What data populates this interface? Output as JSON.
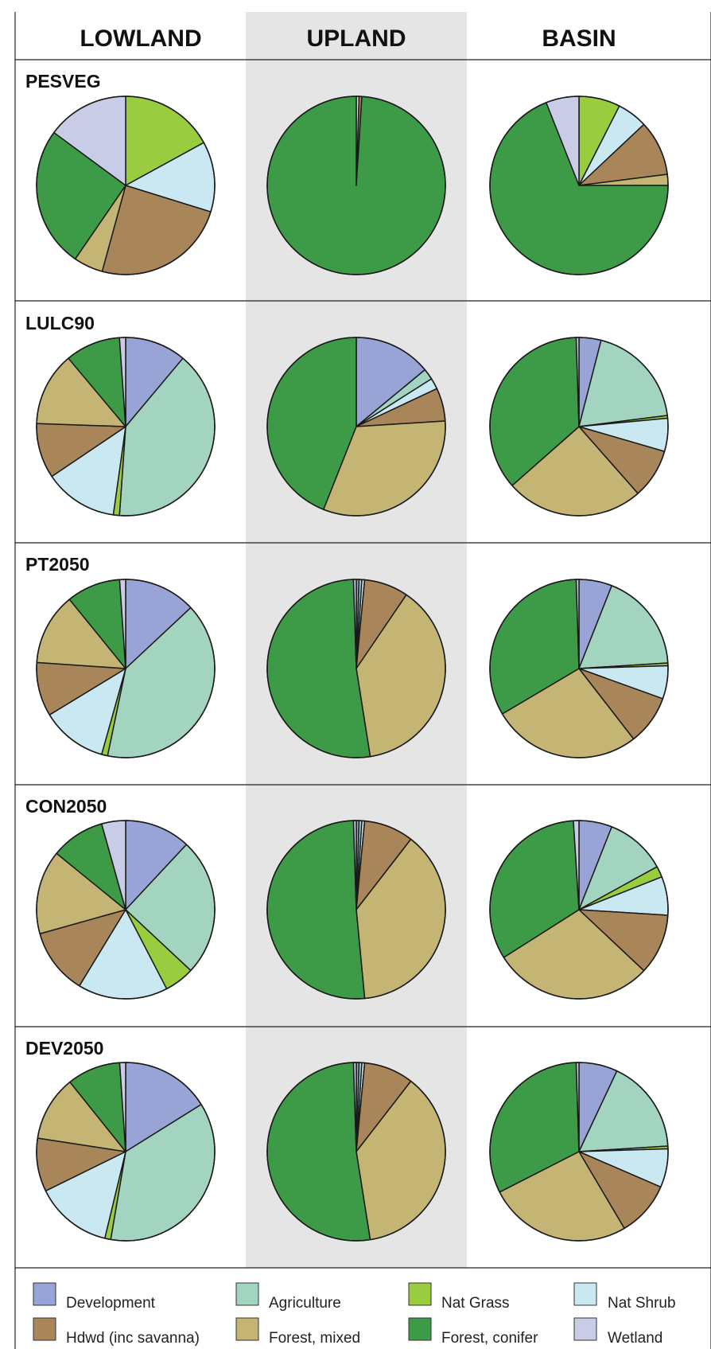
{
  "columns": [
    "LOWLAND",
    "UPLAND",
    "BASIN"
  ],
  "categories": [
    "Development",
    "Agriculture",
    "Nat Grass",
    "Nat Shrub",
    "Hdwd (inc savanna)",
    "Forest, mixed",
    "Forest, conifer",
    "Wetland"
  ],
  "colors": {
    "Development": "#98a4d6",
    "Agriculture": "#a3d4bf",
    "Nat Grass": "#99cc3e",
    "Nat Shrub": "#c9e8f1",
    "Hdwd (inc savanna)": "#a88659",
    "Forest, mixed": "#c4b574",
    "Forest, conifer": "#3d9a47",
    "Wetland": "#c9cce6"
  },
  "chart_data": {
    "type": "pie",
    "units": "percent of area",
    "rows": [
      "PESVEG",
      "LULC90",
      "PT2050",
      "CON2050",
      "DEV2050"
    ],
    "categories": [
      "Development",
      "Agriculture",
      "Nat Grass",
      "Nat Shrub",
      "Hdwd (inc savanna)",
      "Forest, mixed",
      "Forest, conifer",
      "Wetland"
    ],
    "pies": [
      {
        "row": "PESVEG",
        "column": "LOWLAND",
        "values": [
          0,
          0,
          16,
          12,
          23,
          5,
          24,
          14
        ]
      },
      {
        "row": "PESVEG",
        "column": "UPLAND",
        "values": [
          0,
          0,
          0,
          0.5,
          0.5,
          0,
          99,
          0
        ]
      },
      {
        "row": "PESVEG",
        "column": "BASIN",
        "values": [
          0,
          0,
          7.5,
          5.5,
          10,
          2,
          69,
          6
        ]
      },
      {
        "row": "LULC90",
        "column": "LOWLAND",
        "values": [
          10,
          36,
          1,
          12,
          9,
          12,
          9,
          1
        ]
      },
      {
        "row": "LULC90",
        "column": "UPLAND",
        "values": [
          14,
          2,
          0,
          2,
          6,
          32,
          44,
          0
        ]
      },
      {
        "row": "LULC90",
        "column": "BASIN",
        "values": [
          4,
          19,
          0.5,
          6,
          9,
          25,
          36,
          0.5
        ]
      },
      {
        "row": "PT2050",
        "column": "LOWLAND",
        "values": [
          12,
          37,
          1,
          11,
          9,
          12,
          9,
          1
        ]
      },
      {
        "row": "PT2050",
        "column": "UPLAND",
        "values": [
          0.5,
          0.5,
          0,
          0.5,
          8,
          38,
          52,
          0.5
        ]
      },
      {
        "row": "PT2050",
        "column": "BASIN",
        "values": [
          6,
          18,
          0.5,
          6,
          9,
          27,
          33,
          0.5
        ]
      },
      {
        "row": "CON2050",
        "column": "LOWLAND",
        "values": [
          11,
          23,
          5,
          15,
          11,
          14,
          9,
          4
        ]
      },
      {
        "row": "CON2050",
        "column": "UPLAND",
        "values": [
          0.5,
          0.5,
          0,
          0.5,
          9,
          38,
          51,
          0.5
        ]
      },
      {
        "row": "CON2050",
        "column": "BASIN",
        "values": [
          6,
          11,
          2,
          7,
          11,
          29,
          33,
          1
        ]
      },
      {
        "row": "DEV2050",
        "column": "LOWLAND",
        "values": [
          15,
          34,
          1,
          13,
          9,
          11,
          9,
          1
        ]
      },
      {
        "row": "DEV2050",
        "column": "UPLAND",
        "values": [
          0.5,
          0.5,
          0,
          0.5,
          9,
          37,
          52,
          0.5
        ]
      },
      {
        "row": "DEV2050",
        "column": "BASIN",
        "values": [
          7,
          17,
          0.5,
          7,
          10,
          26,
          32,
          0.5
        ]
      }
    ]
  }
}
